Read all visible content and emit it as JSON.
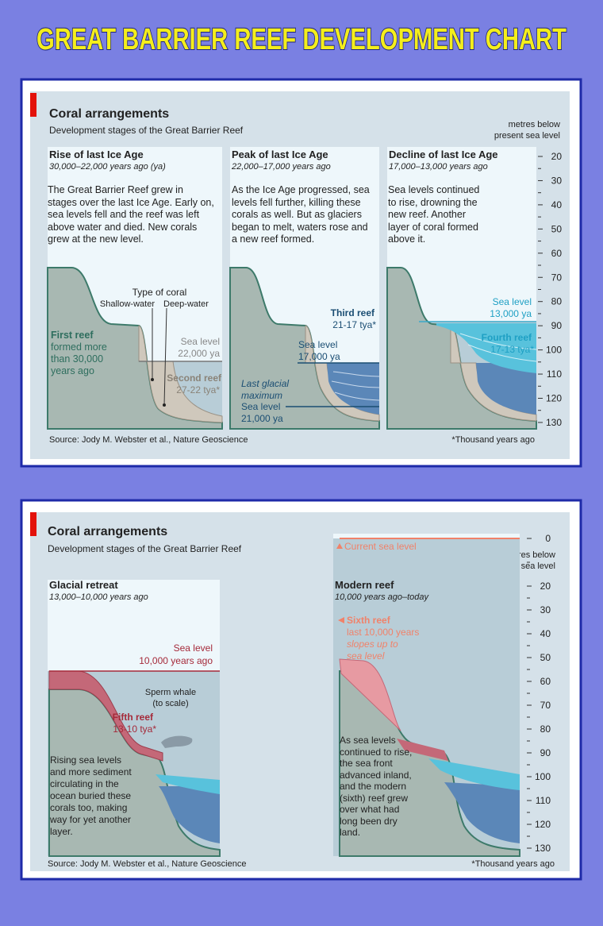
{
  "title": "GREAT BARRIER REEF DEVELOPMENT CHART",
  "panels": [
    {
      "heading": "Coral arrangements",
      "subheading": "Development stages of the Great Barrier Reef",
      "axis_title": [
        "metres below",
        "present sea level"
      ],
      "ticks": [
        20,
        30,
        40,
        50,
        60,
        70,
        80,
        90,
        100,
        110,
        120,
        130
      ],
      "stages": [
        {
          "title": "Rise of last Ice Age",
          "dates": "30,000–22,000 years ago (ya)",
          "text": "The Great Barrier Reef grew in stages over the last Ice Age. Early on, sea levels fell and the reef was left above water and died. New corals grew at the new level."
        },
        {
          "title": "Peak of last Ice Age",
          "dates": "22,000–17,000 years ago",
          "text": "As the Ice Age progressed, sea levels fell further, killing these corals as well. But as glaciers began to melt, waters rose and a new reef formed."
        },
        {
          "title": "Decline of last Ice Age",
          "dates": "17,000–13,000 years ago",
          "text": "Sea levels continued to rise, drowning the new reef. Another layer of coral formed above it."
        }
      ],
      "labels": {
        "coral_type": "Type of coral",
        "shallow": "Shallow-water",
        "deep": "Deep-water",
        "first_reef": "First reef",
        "first_reef_note": [
          "formed more",
          "than 30,000",
          "years ago"
        ],
        "sea_level_a": [
          "Sea level",
          "22,000 ya"
        ],
        "second_reef": "Second reef",
        "second_reef_dates": "27-22 tya*",
        "third_reef": "Third reef",
        "third_reef_dates": "21-17 tya*",
        "sea_level_b": [
          "Sea level",
          "17,000 ya"
        ],
        "glacial": [
          "Last glacial",
          "maximum"
        ],
        "sea_level_c": [
          "Sea level",
          "21,000 ya"
        ],
        "sea_level_d": [
          "Sea level",
          "13,000 ya"
        ],
        "fourth_reef": "Fourth reef",
        "fourth_reef_dates": "17-13 tya*"
      },
      "source": "Source: Jody M. Webster et al., Nature Geoscience",
      "footnote": "*Thousand years ago"
    },
    {
      "heading": "Coral arrangements",
      "subheading": "Development stages of the Great Barrier Reef",
      "axis_title": [
        "metres below",
        "present sea level"
      ],
      "ticks": [
        0,
        20,
        30,
        40,
        50,
        60,
        70,
        80,
        90,
        100,
        110,
        120,
        130
      ],
      "stages": [
        {
          "title": "Glacial retreat",
          "dates": "13,000–10,000 years ago",
          "text": "Rising sea levels and more sediment circulating in the ocean buried these corals too, making way for yet another layer."
        },
        {
          "title": "Modern reef",
          "dates": "10,000 years ago–today",
          "text": "As sea levels continued to rise, the sea front advanced inland, and the modern (sixth) reef grew over what had long been dry land."
        }
      ],
      "labels": {
        "current_sea_level": "Current sea level",
        "sea_level": [
          "Sea level",
          "10,000 years ago"
        ],
        "whale": [
          "Sperm whale",
          "(to scale)"
        ],
        "fifth_reef": "Fifth reef",
        "fifth_reef_dates": "13-10 tya*",
        "sixth_reef": "Sixth reef",
        "sixth_reef_note": "last 10,000 years",
        "sixth_reef_slope": [
          "slopes up to",
          "sea level"
        ]
      },
      "source": "Source: Jody M. Webster et al., Nature Geoscience",
      "footnote": "*Thousand years ago"
    }
  ]
}
